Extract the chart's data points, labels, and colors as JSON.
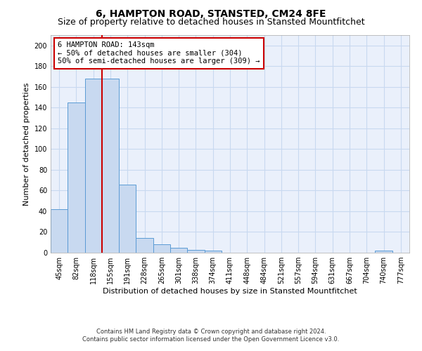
{
  "title": "6, HAMPTON ROAD, STANSTED, CM24 8FE",
  "subtitle": "Size of property relative to detached houses in Stansted Mountfitchet",
  "xlabel": "Distribution of detached houses by size in Stansted Mountfitchet",
  "ylabel": "Number of detached properties",
  "footnote1": "Contains HM Land Registry data © Crown copyright and database right 2024.",
  "footnote2": "Contains public sector information licensed under the Open Government Licence v3.0.",
  "bin_labels": [
    "45sqm",
    "82sqm",
    "118sqm",
    "155sqm",
    "191sqm",
    "228sqm",
    "265sqm",
    "301sqm",
    "338sqm",
    "374sqm",
    "411sqm",
    "448sqm",
    "484sqm",
    "521sqm",
    "557sqm",
    "594sqm",
    "631sqm",
    "667sqm",
    "704sqm",
    "740sqm",
    "777sqm"
  ],
  "bar_values": [
    42,
    145,
    168,
    168,
    66,
    14,
    8,
    5,
    3,
    2,
    0,
    0,
    0,
    0,
    0,
    0,
    0,
    0,
    0,
    2,
    0
  ],
  "bar_color": "#c8d9f0",
  "bar_edge_color": "#5b9bd5",
  "annotation_line1": "6 HAMPTON ROAD: 143sqm",
  "annotation_line2": "← 50% of detached houses are smaller (304)",
  "annotation_line3": "50% of semi-detached houses are larger (309) →",
  "red_line_x": 2.5,
  "ylim": [
    0,
    210
  ],
  "yticks": [
    0,
    20,
    40,
    60,
    80,
    100,
    120,
    140,
    160,
    180,
    200
  ],
  "background_color": "#ffffff",
  "grid_color": "#c8d9f0",
  "annotation_box_color": "#ffffff",
  "annotation_box_edge_color": "#cc0000",
  "red_line_color": "#cc0000",
  "title_fontsize": 10,
  "subtitle_fontsize": 9,
  "axis_label_fontsize": 8,
  "tick_fontsize": 7,
  "annotation_fontsize": 7.5
}
